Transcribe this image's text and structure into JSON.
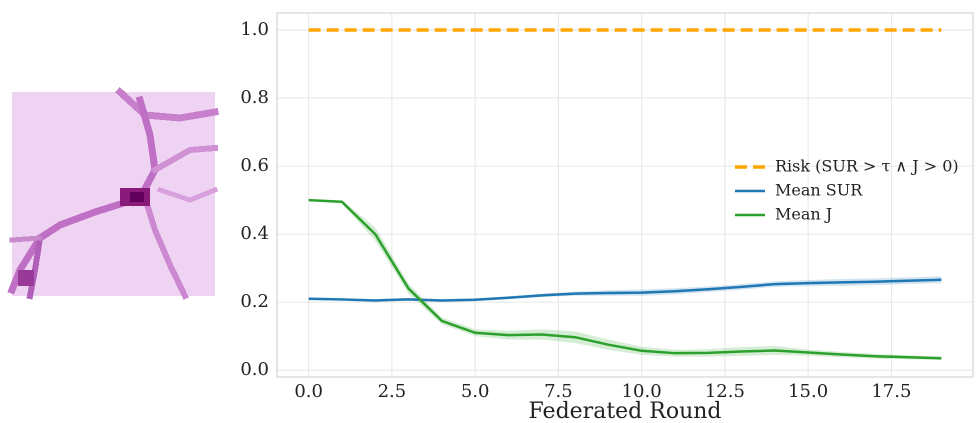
{
  "chart_data": {
    "type": "line",
    "xlabel": "Federated Round",
    "x": [
      0,
      1,
      2,
      3,
      4,
      5,
      6,
      7,
      8,
      9,
      10,
      11,
      12,
      13,
      14,
      15,
      16,
      17,
      18,
      19
    ],
    "xlim": [
      -0.95,
      19.95
    ],
    "xticks": [
      {
        "value": 0,
        "label": "0.0"
      },
      2.5,
      {
        "value": 5,
        "label": "5.0"
      },
      7.5,
      {
        "value": 10,
        "label": "10.0"
      },
      12.5,
      {
        "value": 15,
        "label": "15.0"
      },
      17.5
    ],
    "ylim": [
      -0.02,
      1.05
    ],
    "yticks": [
      {
        "value": 0,
        "label": "0.0"
      },
      0.2,
      0.4,
      0.6,
      0.8,
      {
        "value": 1,
        "label": "1.0"
      }
    ],
    "grid": true,
    "legend": "right",
    "series": [
      {
        "name": "Risk (SUR > τ ∧ J > 0)",
        "color": "#ffa500",
        "dashed": true,
        "values": [
          1,
          1,
          1,
          1,
          1,
          1,
          1,
          1,
          1,
          1,
          1,
          1,
          1,
          1,
          1,
          1,
          1,
          1,
          1,
          1
        ]
      },
      {
        "name": "Mean SUR",
        "color": "#1f77b4",
        "values": [
          0.21,
          0.208,
          0.205,
          0.208,
          0.205,
          0.207,
          0.213,
          0.22,
          0.225,
          0.227,
          0.228,
          0.232,
          0.238,
          0.245,
          0.253,
          0.256,
          0.258,
          0.26,
          0.263,
          0.266
        ],
        "lower": [
          0.206,
          0.204,
          0.201,
          0.204,
          0.201,
          0.203,
          0.209,
          0.215,
          0.219,
          0.219,
          0.219,
          0.223,
          0.23,
          0.237,
          0.245,
          0.247,
          0.248,
          0.25,
          0.253,
          0.256
        ],
        "upper": [
          0.214,
          0.212,
          0.209,
          0.212,
          0.209,
          0.211,
          0.217,
          0.225,
          0.231,
          0.235,
          0.237,
          0.241,
          0.246,
          0.253,
          0.261,
          0.265,
          0.268,
          0.27,
          0.273,
          0.276
        ]
      },
      {
        "name": "Mean J",
        "color": "#2ca02c",
        "values": [
          0.5,
          0.495,
          0.4,
          0.24,
          0.145,
          0.11,
          0.103,
          0.105,
          0.097,
          0.075,
          0.057,
          0.05,
          0.051,
          0.055,
          0.058,
          0.052,
          0.046,
          0.041,
          0.038,
          0.035
        ],
        "lower": [
          0.498,
          0.49,
          0.38,
          0.225,
          0.135,
          0.1,
          0.09,
          0.09,
          0.08,
          0.06,
          0.045,
          0.04,
          0.04,
          0.042,
          0.045,
          0.043,
          0.038,
          0.034,
          0.032,
          0.03
        ],
        "upper": [
          0.502,
          0.5,
          0.42,
          0.255,
          0.155,
          0.12,
          0.116,
          0.12,
          0.114,
          0.09,
          0.069,
          0.06,
          0.062,
          0.068,
          0.071,
          0.061,
          0.054,
          0.048,
          0.044,
          0.04
        ]
      }
    ]
  }
}
